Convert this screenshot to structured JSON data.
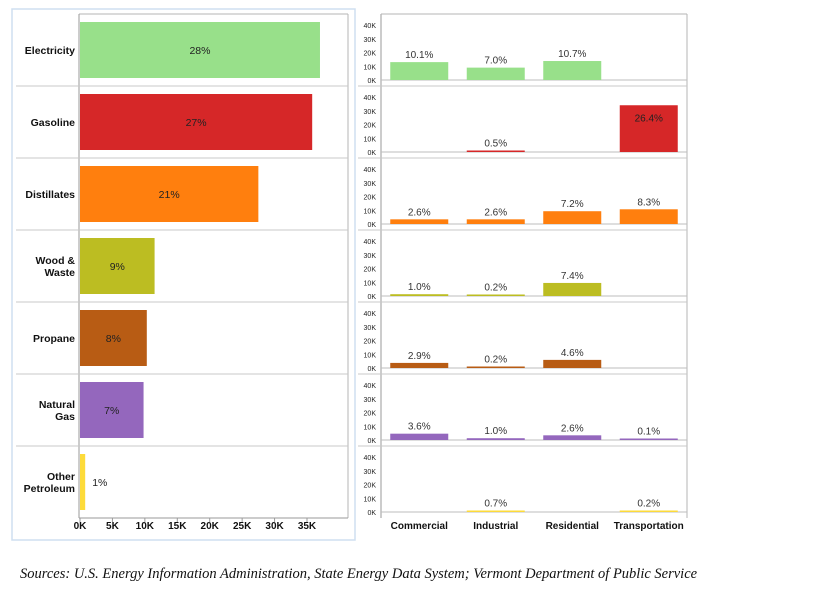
{
  "chart_data": [
    {
      "type": "bar",
      "orientation": "horizontal",
      "categories": [
        "Electricity",
        "Gasoline",
        "Distillates",
        "Wood & Waste",
        "Propane",
        "Natural Gas",
        "Other Petroleum"
      ],
      "values": [
        37000,
        35800,
        27500,
        11500,
        10300,
        9800,
        800
      ],
      "data_labels": [
        "28%",
        "27%",
        "21%",
        "9%",
        "8%",
        "7%",
        "1%"
      ],
      "colors": [
        "#98e08a",
        "#d62728",
        "#ff7f0e",
        "#bcbd22",
        "#b85c14",
        "#9467bd",
        "#fddb3a"
      ],
      "xticks": [
        "0K",
        "5K",
        "10K",
        "15K",
        "20K",
        "25K",
        "30K",
        "35K"
      ],
      "xlim": [
        0,
        40000
      ],
      "grid": false
    },
    {
      "type": "bar",
      "layout": "small-multiples",
      "categories": [
        "Commercial",
        "Industrial",
        "Residential",
        "Transportation"
      ],
      "yticks": [
        "40K",
        "30K",
        "20K",
        "10K",
        "0K"
      ],
      "ylim": [
        0,
        40000
      ],
      "panels": [
        {
          "row": "Electricity",
          "values": [
            13000,
            9000,
            13800,
            null
          ],
          "labels": [
            "10.1%",
            "7.0%",
            "10.7%",
            ""
          ]
        },
        {
          "row": "Gasoline",
          "values": [
            null,
            600,
            null,
            34000
          ],
          "labels": [
            "",
            "0.5%",
            "",
            "26.4%"
          ]
        },
        {
          "row": "Distillates",
          "values": [
            3400,
            3400,
            9300,
            10700
          ],
          "labels": [
            "2.6%",
            "2.6%",
            "7.2%",
            "8.3%"
          ]
        },
        {
          "row": "Wood & Waste",
          "values": [
            1300,
            300,
            9500,
            null
          ],
          "labels": [
            "1.0%",
            "0.2%",
            "7.4%",
            ""
          ]
        },
        {
          "row": "Propane",
          "values": [
            3700,
            300,
            5900,
            null
          ],
          "labels": [
            "2.9%",
            "0.2%",
            "4.6%",
            ""
          ]
        },
        {
          "row": "Natural Gas",
          "values": [
            4600,
            1300,
            3400,
            100
          ],
          "labels": [
            "3.6%",
            "1.0%",
            "2.6%",
            "0.1%"
          ]
        },
        {
          "row": "Other Petroleum",
          "values": [
            null,
            900,
            null,
            300
          ],
          "labels": [
            "",
            "0.7%",
            "",
            "0.2%"
          ]
        }
      ]
    }
  ],
  "source_note": "Sources: U.S. Energy Information Administration, State Energy Data System; Vermont Department of Public Service"
}
